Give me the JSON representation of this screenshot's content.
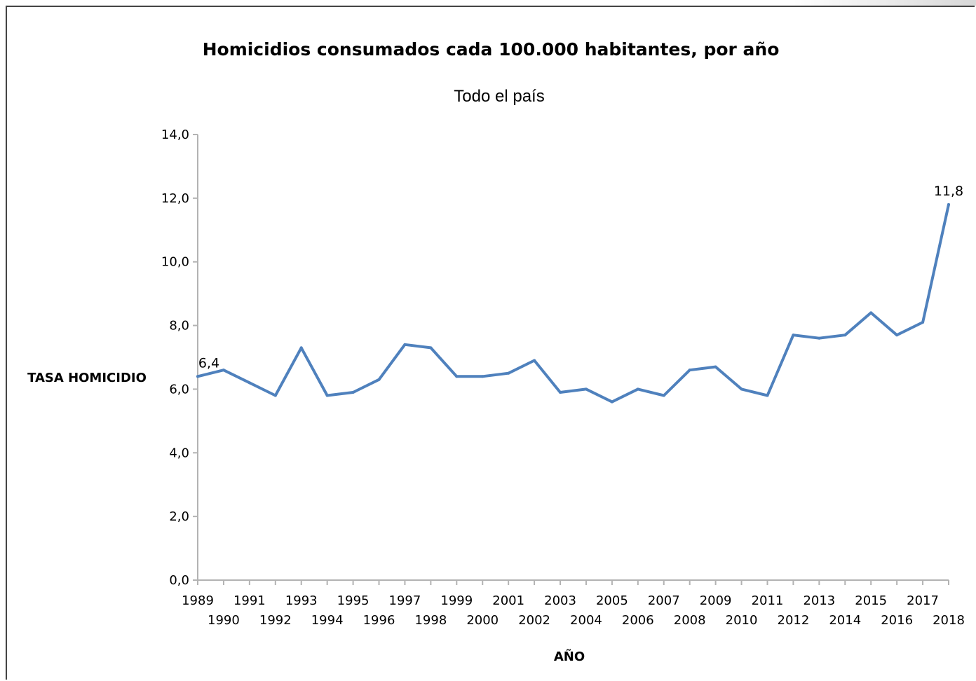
{
  "chart_data": {
    "type": "line",
    "title": "Homicidios consumados cada 100.000 habitantes, por año",
    "subtitle": "Todo el país",
    "xlabel": "AÑO",
    "ylabel": "TASA HOMICIDIO",
    "ylim": [
      0,
      14
    ],
    "yticks": [
      "0,0",
      "2,0",
      "4,0",
      "6,0",
      "8,0",
      "10,0",
      "12,0",
      "14,0"
    ],
    "grid": false,
    "legend": "none",
    "line_color": "#4f81bd",
    "x": [
      "1989",
      "1990",
      "1991",
      "1992",
      "1993",
      "1994",
      "1995",
      "1996",
      "1997",
      "1998",
      "1999",
      "2000",
      "2001",
      "2002",
      "2003",
      "2004",
      "2005",
      "2006",
      "2007",
      "2008",
      "2009",
      "2010",
      "2011",
      "2012",
      "2013",
      "2014",
      "2015",
      "2016",
      "2017",
      "2018"
    ],
    "values": [
      6.4,
      6.6,
      6.2,
      5.8,
      7.3,
      5.8,
      5.9,
      6.3,
      7.4,
      7.3,
      6.4,
      6.4,
      6.5,
      6.9,
      5.9,
      6.0,
      5.6,
      6.0,
      5.8,
      6.6,
      6.7,
      6.0,
      5.8,
      7.7,
      7.6,
      7.7,
      8.4,
      7.7,
      8.1,
      11.8
    ],
    "data_labels": [
      {
        "index": 0,
        "text": "6,4"
      },
      {
        "index": 29,
        "text": "11,8"
      }
    ]
  }
}
